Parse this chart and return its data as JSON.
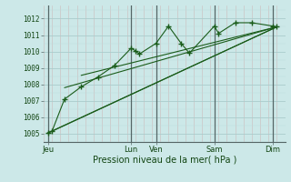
{
  "bg_color": "#cce8e8",
  "grid_major_color": "#aacccc",
  "grid_minor_color": "#bbdddd",
  "line_color": "#1a5c1a",
  "title": "Pression niveau de la mer( hPa )",
  "ylim": [
    1004.5,
    1012.8
  ],
  "yticks": [
    1005,
    1006,
    1007,
    1008,
    1009,
    1010,
    1011,
    1012
  ],
  "day_labels": [
    "Jeu",
    "Lun",
    "Ven",
    "Sam",
    "Dim"
  ],
  "day_positions": [
    0,
    10,
    13,
    20,
    27
  ],
  "xlim": [
    -0.5,
    28.5
  ],
  "series_jagged": {
    "x": [
      0,
      0.5,
      2,
      4,
      6,
      8,
      10,
      10.5,
      11,
      13,
      14.5,
      16,
      17,
      20,
      20.5,
      22.5,
      24.5,
      27,
      27.5
    ],
    "y": [
      1005.05,
      1005.15,
      1007.1,
      1007.85,
      1008.45,
      1009.15,
      1010.2,
      1010.05,
      1009.85,
      1010.5,
      1011.55,
      1010.5,
      1009.9,
      1011.55,
      1011.1,
      1011.75,
      1011.75,
      1011.55,
      1011.5
    ]
  },
  "series_smooth1": {
    "x": [
      0,
      27.5
    ],
    "y": [
      1005.05,
      1011.5
    ]
  },
  "series_smooth2": {
    "x": [
      0.5,
      27.5
    ],
    "y": [
      1005.15,
      1011.5
    ]
  },
  "series_smooth3": {
    "x": [
      2,
      27.5
    ],
    "y": [
      1007.8,
      1011.5
    ]
  },
  "series_smooth4": {
    "x": [
      4,
      27.5
    ],
    "y": [
      1008.55,
      1011.5
    ]
  }
}
